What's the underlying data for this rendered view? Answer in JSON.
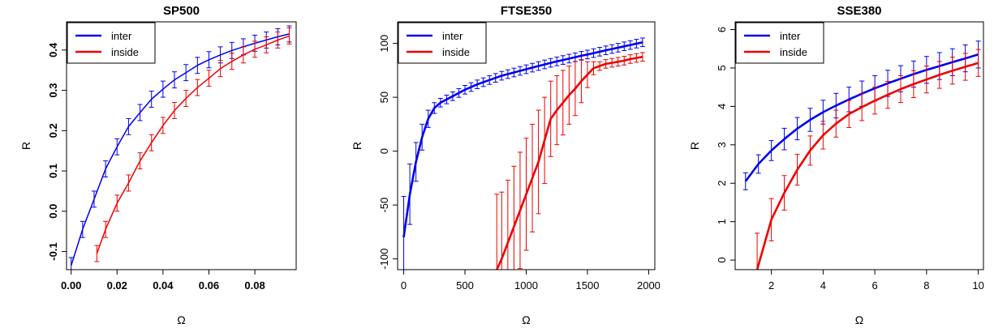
{
  "chart_data": [
    {
      "type": "line",
      "title": "SP500",
      "xlabel": "Ω",
      "ylabel": "R",
      "xlim": [
        -0.002,
        0.098
      ],
      "ylim": [
        -0.145,
        0.47
      ],
      "xticks": [
        0.0,
        0.02,
        0.04,
        0.06,
        0.08
      ],
      "xtick_labels": [
        "0.00",
        "0.02",
        "0.04",
        "0.06",
        "0.08"
      ],
      "yticks": [
        -0.1,
        0.0,
        0.1,
        0.2,
        0.3,
        0.4
      ],
      "ytick_labels": [
        "-0.1",
        "0.0",
        "0.1",
        "0.2",
        "0.3",
        "0.4"
      ],
      "legend_position": "top-left",
      "series": [
        {
          "name": "inter",
          "color": "#0000ee",
          "x": [
            0.0,
            0.005,
            0.01,
            0.015,
            0.02,
            0.025,
            0.03,
            0.035,
            0.04,
            0.045,
            0.05,
            0.055,
            0.06,
            0.065,
            0.07,
            0.075,
            0.08,
            0.085,
            0.09,
            0.095
          ],
          "y": [
            -0.135,
            -0.045,
            0.03,
            0.105,
            0.16,
            0.21,
            0.245,
            0.278,
            0.303,
            0.326,
            0.344,
            0.362,
            0.376,
            0.388,
            0.399,
            0.408,
            0.417,
            0.425,
            0.433,
            0.44
          ],
          "err": [
            0.02,
            0.02,
            0.02,
            0.02,
            0.02,
            0.02,
            0.02,
            0.02,
            0.02,
            0.02,
            0.02,
            0.02,
            0.02,
            0.02,
            0.02,
            0.02,
            0.02,
            0.02,
            0.02,
            0.02
          ]
        },
        {
          "name": "inside",
          "color": "#ee0000",
          "x": [
            0.0112,
            0.015,
            0.02,
            0.025,
            0.03,
            0.035,
            0.04,
            0.045,
            0.05,
            0.055,
            0.06,
            0.065,
            0.07,
            0.075,
            0.08,
            0.085,
            0.09,
            0.095
          ],
          "y": [
            -0.105,
            -0.045,
            0.02,
            0.07,
            0.125,
            0.17,
            0.213,
            0.25,
            0.28,
            0.307,
            0.33,
            0.354,
            0.372,
            0.388,
            0.402,
            0.413,
            0.425,
            0.435
          ],
          "err": [
            0.02,
            0.02,
            0.02,
            0.02,
            0.02,
            0.02,
            0.02,
            0.02,
            0.02,
            0.02,
            0.02,
            0.02,
            0.02,
            0.02,
            0.02,
            0.02,
            0.02,
            0.02
          ]
        }
      ]
    },
    {
      "type": "line",
      "title": "FTSE350",
      "xlabel": "Ω",
      "ylabel": "R",
      "xlim": [
        -50,
        2050
      ],
      "ylim": [
        -110,
        120
      ],
      "xticks": [
        0,
        500,
        1000,
        1500,
        2000
      ],
      "xtick_labels": [
        "0",
        "500",
        "1000",
        "1500",
        "2000"
      ],
      "yticks": [
        -100,
        -50,
        0,
        50,
        100
      ],
      "ytick_labels": [
        "-100",
        "-50",
        "0",
        "50",
        "100"
      ],
      "legend_position": "top-left",
      "series": [
        {
          "name": "inter",
          "color": "#0000ee",
          "x": [
            0,
            50,
            100,
            150,
            200,
            250,
            300,
            350,
            400,
            450,
            500,
            550,
            600,
            650,
            700,
            750,
            800,
            850,
            900,
            950,
            1000,
            1050,
            1100,
            1150,
            1200,
            1250,
            1300,
            1350,
            1400,
            1450,
            1500,
            1550,
            1600,
            1650,
            1700,
            1750,
            1800,
            1850,
            1900,
            1950
          ],
          "y": [
            -80,
            -40,
            -10,
            13,
            30,
            40,
            45,
            48,
            51,
            54,
            57,
            59.5,
            62,
            64,
            66,
            68,
            70,
            71.5,
            73,
            74.5,
            76,
            77.5,
            79,
            80.5,
            82,
            83.3,
            84.6,
            85.9,
            87.2,
            88.5,
            89.7,
            91,
            92.3,
            93.6,
            94.8,
            96,
            97.3,
            98.5,
            99.8,
            101
          ],
          "err": [
            38,
            28,
            18,
            12,
            8,
            5,
            4,
            4,
            4,
            4,
            4,
            4,
            4,
            4,
            4,
            4,
            4,
            4,
            4,
            4,
            4,
            4,
            4,
            4,
            4,
            4,
            4,
            4,
            4,
            4,
            4,
            4,
            4,
            4,
            4,
            4,
            4,
            4,
            4,
            4
          ]
        },
        {
          "name": "inside",
          "color": "#ee0000",
          "x": [
            760,
            800,
            850,
            900,
            950,
            1000,
            1050,
            1100,
            1150,
            1200,
            1250,
            1300,
            1350,
            1400,
            1450,
            1500,
            1550,
            1600,
            1650,
            1700,
            1750,
            1800,
            1850,
            1900,
            1950
          ],
          "y": [
            -110,
            -100,
            -85,
            -70,
            -55,
            -40,
            -25,
            -10,
            10,
            30,
            38,
            45,
            52,
            58,
            65,
            71,
            77,
            79,
            81,
            82,
            83,
            84,
            85.5,
            86.5,
            87.5
          ],
          "err": [
            70,
            62,
            58,
            56,
            54,
            52,
            50,
            48,
            40,
            35,
            32,
            30,
            27,
            25,
            20,
            12,
            6,
            4,
            4,
            4,
            4,
            4,
            4,
            4,
            4
          ]
        }
      ]
    },
    {
      "type": "line",
      "title": "SSE380",
      "xlabel": "Ω",
      "ylabel": "R",
      "xlim": [
        0.6,
        10.2
      ],
      "ylim": [
        -0.25,
        6.2
      ],
      "xticks": [
        2,
        4,
        6,
        8,
        10
      ],
      "xtick_labels": [
        "2",
        "4",
        "6",
        "8",
        "10"
      ],
      "yticks": [
        0,
        1,
        2,
        3,
        4,
        5,
        6
      ],
      "ytick_labels": [
        "0",
        "1",
        "2",
        "3",
        "4",
        "5",
        "6"
      ],
      "legend_position": "top-left",
      "series": [
        {
          "name": "inter",
          "color": "#0000ee",
          "x": [
            1.0,
            1.5,
            2.0,
            2.5,
            3.0,
            3.5,
            4.0,
            4.5,
            5.0,
            5.5,
            6.0,
            6.5,
            7.0,
            7.5,
            8.0,
            8.5,
            9.0,
            9.5,
            10.0
          ],
          "y": [
            2.05,
            2.5,
            2.85,
            3.15,
            3.42,
            3.65,
            3.85,
            4.02,
            4.18,
            4.33,
            4.47,
            4.6,
            4.72,
            4.84,
            4.95,
            5.05,
            5.15,
            5.25,
            5.35
          ],
          "err": [
            0.22,
            0.24,
            0.26,
            0.28,
            0.29,
            0.3,
            0.31,
            0.32,
            0.32,
            0.33,
            0.33,
            0.34,
            0.34,
            0.34,
            0.35,
            0.35,
            0.35,
            0.35,
            0.35
          ]
        },
        {
          "name": "inside",
          "color": "#ee0000",
          "x": [
            1.45,
            2.0,
            2.5,
            3.0,
            3.5,
            4.0,
            4.5,
            5.0,
            5.5,
            6.0,
            6.5,
            7.0,
            7.5,
            8.0,
            8.5,
            9.0,
            9.5,
            10.0
          ],
          "y": [
            -0.25,
            1.05,
            1.75,
            2.35,
            2.85,
            3.25,
            3.55,
            3.8,
            3.98,
            4.15,
            4.3,
            4.45,
            4.58,
            4.7,
            4.82,
            4.93,
            5.03,
            5.13
          ],
          "err": [
            0.95,
            0.55,
            0.45,
            0.4,
            0.38,
            0.36,
            0.35,
            0.35,
            0.35,
            0.35,
            0.35,
            0.35,
            0.35,
            0.35,
            0.35,
            0.35,
            0.35,
            0.35
          ]
        }
      ]
    }
  ]
}
